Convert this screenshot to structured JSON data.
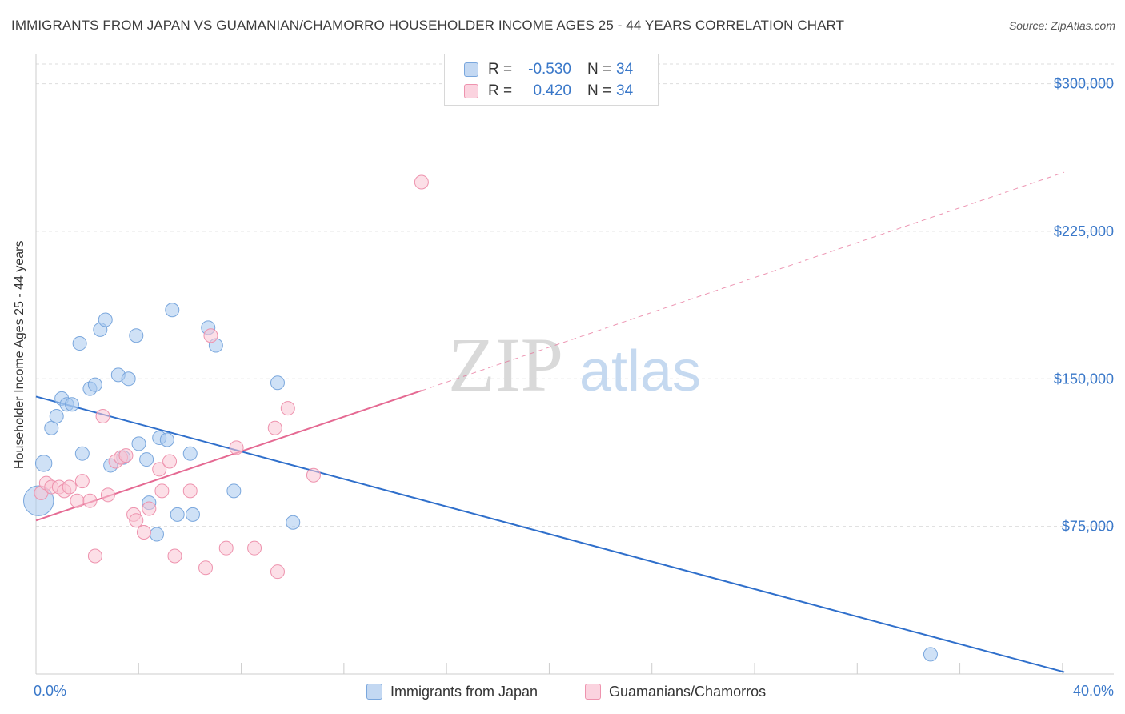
{
  "header": {
    "title": "IMMIGRANTS FROM JAPAN VS GUAMANIAN/CHAMORRO HOUSEHOLDER INCOME AGES 25 - 44 YEARS CORRELATION CHART",
    "source": "Source: ZipAtlas.com"
  },
  "watermark": {
    "zip": "ZIP",
    "atlas": "atlas"
  },
  "stats_legend": {
    "rows": [
      {
        "r_label": "R =",
        "r_value": "-0.530",
        "n_label": "N =",
        "n_value": "34",
        "color": "#a8c8ee",
        "border": "#7aa7dd"
      },
      {
        "r_label": "R =",
        "r_value": "0.420",
        "n_label": "N =",
        "n_value": "34",
        "color": "#f9c4d4",
        "border": "#ee93ae"
      }
    ]
  },
  "colors": {
    "blue_line": "#2f6fcb",
    "pink_line": "#e56a93",
    "blue_fill": "#a8c8ee",
    "pink_fill": "#f9c4d4",
    "axis_text": "#3a78c9",
    "grid": "#dddddd"
  },
  "chart_data": {
    "type": "scatter",
    "title": "IMMIGRANTS FROM JAPAN VS GUAMANIAN/CHAMORRO HOUSEHOLDER INCOME AGES 25 - 44 YEARS CORRELATION CHART",
    "xlabel": "",
    "ylabel": "Householder Income Ages 25 - 44 years",
    "xlim": [
      0,
      40
    ],
    "ylim": [
      0,
      310000
    ],
    "x_tick_labels": [
      "0.0%",
      "40.0%"
    ],
    "y_ticks": [
      {
        "value": 75000,
        "label": "$75,000"
      },
      {
        "value": 150000,
        "label": "$150,000"
      },
      {
        "value": 225000,
        "label": "$225,000"
      },
      {
        "value": 300000,
        "label": "$300,000"
      }
    ],
    "grid": true,
    "legend_position": "bottom-center",
    "series": [
      {
        "name": "Immigrants from Japan",
        "color": "#a8c8ee",
        "stroke": "#7aa7dd",
        "points": [
          [
            0.3,
            107000
          ],
          [
            0.6,
            125000
          ],
          [
            0.8,
            131000
          ],
          [
            1.0,
            140000
          ],
          [
            1.2,
            137000
          ],
          [
            1.4,
            137000
          ],
          [
            1.7,
            168000
          ],
          [
            1.8,
            112000
          ],
          [
            2.1,
            145000
          ],
          [
            2.3,
            147000
          ],
          [
            2.5,
            175000
          ],
          [
            2.7,
            180000
          ],
          [
            2.9,
            106000
          ],
          [
            3.2,
            152000
          ],
          [
            3.4,
            110000
          ],
          [
            3.6,
            150000
          ],
          [
            3.9,
            172000
          ],
          [
            4.0,
            117000
          ],
          [
            4.3,
            109000
          ],
          [
            4.4,
            87000
          ],
          [
            4.7,
            71000
          ],
          [
            4.8,
            120000
          ],
          [
            5.1,
            119000
          ],
          [
            5.3,
            185000
          ],
          [
            5.5,
            81000
          ],
          [
            6.0,
            112000
          ],
          [
            6.1,
            81000
          ],
          [
            6.7,
            176000
          ],
          [
            7.0,
            167000
          ],
          [
            7.7,
            93000
          ],
          [
            9.4,
            148000
          ],
          [
            10.0,
            77000
          ],
          [
            34.8,
            10000
          ],
          [
            0.1,
            88000
          ]
        ],
        "sizes": [
          1.2,
          1,
          1,
          1,
          1,
          1,
          1,
          1,
          1,
          1,
          1,
          1,
          1,
          1,
          1,
          1,
          1,
          1,
          1,
          1,
          1,
          1,
          1,
          1,
          1,
          1,
          1,
          1,
          1,
          1,
          1,
          1,
          1,
          2.2
        ],
        "trendline": {
          "x": [
            0,
            40
          ],
          "y": [
            141000,
            1000
          ],
          "style": "solid"
        }
      },
      {
        "name": "Guamanians/Chamorros",
        "color": "#f9c4d4",
        "stroke": "#ee93ae",
        "points": [
          [
            0.2,
            92000
          ],
          [
            0.4,
            97000
          ],
          [
            0.6,
            95000
          ],
          [
            0.9,
            95000
          ],
          [
            1.1,
            93000
          ],
          [
            1.3,
            95000
          ],
          [
            1.6,
            88000
          ],
          [
            1.8,
            98000
          ],
          [
            2.1,
            88000
          ],
          [
            2.3,
            60000
          ],
          [
            2.6,
            131000
          ],
          [
            2.8,
            91000
          ],
          [
            3.1,
            108000
          ],
          [
            3.3,
            110000
          ],
          [
            3.5,
            111000
          ],
          [
            3.8,
            81000
          ],
          [
            3.9,
            78000
          ],
          [
            4.2,
            72000
          ],
          [
            4.4,
            84000
          ],
          [
            4.8,
            104000
          ],
          [
            4.9,
            93000
          ],
          [
            5.2,
            108000
          ],
          [
            5.4,
            60000
          ],
          [
            6.0,
            93000
          ],
          [
            6.6,
            54000
          ],
          [
            6.8,
            172000
          ],
          [
            7.4,
            64000
          ],
          [
            7.8,
            115000
          ],
          [
            8.5,
            64000
          ],
          [
            9.3,
            125000
          ],
          [
            9.4,
            52000
          ],
          [
            9.8,
            135000
          ],
          [
            10.8,
            101000
          ],
          [
            15.0,
            250000
          ]
        ],
        "sizes": [
          1,
          1,
          1,
          1,
          1,
          1,
          1,
          1,
          1,
          1,
          1,
          1,
          1,
          1,
          1,
          1,
          1,
          1,
          1,
          1,
          1,
          1,
          1,
          1,
          1,
          1,
          1,
          1,
          1,
          1,
          1,
          1,
          1,
          1
        ],
        "trendline": {
          "x": [
            0,
            15
          ],
          "y": [
            78000,
            144000
          ],
          "style": "solid",
          "extension": {
            "x": [
              15,
              40
            ],
            "y": [
              144000,
              255000
            ],
            "style": "dashed"
          }
        }
      }
    ]
  }
}
